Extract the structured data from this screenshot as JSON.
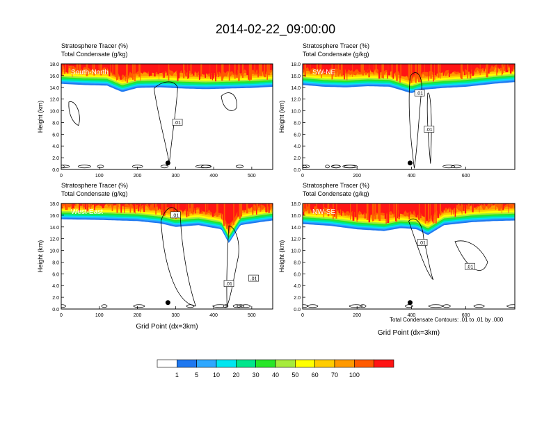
{
  "title": "2014-02-22_09:00:00",
  "contour_note": "Total Condensate Contours: .01 to .01 by .000",
  "colorbar": {
    "colors": [
      "#ffffff",
      "#1e78f0",
      "#2ea8ff",
      "#00e6f0",
      "#00e68c",
      "#28e628",
      "#a6eb3c",
      "#ffff00",
      "#ffcc00",
      "#ff9900",
      "#ff5a00",
      "#ff1414"
    ],
    "labels": [
      "1",
      "5",
      "10",
      "20",
      "30",
      "40",
      "50",
      "60",
      "70",
      "100"
    ]
  },
  "chart_data": [
    {
      "type": "contour",
      "panel": "South-North",
      "header_line1": "Stratosphere Tracer   (%)",
      "header_line2": "Total Condensate   (g/kg)",
      "ylabel": "Height (km)",
      "xlabel": "",
      "xlim": [
        0,
        555
      ],
      "ylim": [
        0,
        18
      ],
      "xticks": [
        "0",
        "100",
        "200",
        "300",
        "400",
        "500"
      ],
      "yticks": [
        "0.0",
        "2.0",
        "4.0",
        "6.0",
        "8.0",
        "10.0",
        "12.0",
        "14.0",
        "16.0",
        "18.0"
      ],
      "marker_x": 280,
      "contour_labels": [
        {
          "text": ".01",
          "x": 305,
          "y": 8.0
        }
      ],
      "tracer_base": [
        [
          0,
          14.6
        ],
        [
          60,
          14.4
        ],
        [
          120,
          14.3
        ],
        [
          160,
          13.2
        ],
        [
          200,
          13.9
        ],
        [
          260,
          14.0
        ],
        [
          320,
          13.8
        ],
        [
          380,
          13.7
        ],
        [
          440,
          13.8
        ],
        [
          500,
          13.9
        ],
        [
          555,
          14.1
        ]
      ],
      "towers": []
    },
    {
      "type": "contour",
      "panel": "SW-NE",
      "header_line1": "Stratosphere Tracer   (%)",
      "header_line2": "Total Condensate   (g/kg)",
      "ylabel": "Height (km)",
      "xlabel": "",
      "xlim": [
        0,
        780
      ],
      "ylim": [
        0,
        18
      ],
      "xticks": [
        "0",
        "200",
        "400",
        "600"
      ],
      "yticks": [
        "0.0",
        "2.0",
        "4.0",
        "6.0",
        "8.0",
        "10.0",
        "12.0",
        "14.0",
        "16.0",
        "18.0"
      ],
      "marker_x": 395,
      "contour_labels": [
        {
          "text": ".01",
          "x": 430,
          "y": 13.0
        },
        {
          "text": ".01",
          "x": 465,
          "y": 6.8
        }
      ],
      "tracer_base": [
        [
          0,
          14.4
        ],
        [
          80,
          14.1
        ],
        [
          160,
          14.0
        ],
        [
          240,
          14.2
        ],
        [
          320,
          14.1
        ],
        [
          400,
          13.0
        ],
        [
          440,
          13.6
        ],
        [
          520,
          13.9
        ],
        [
          600,
          14.1
        ],
        [
          700,
          14.6
        ],
        [
          780,
          14.9
        ]
      ],
      "towers": []
    },
    {
      "type": "contour",
      "panel": "West-East",
      "header_line1": "Stratosphere Tracer   (%)",
      "header_line2": "Total Condensate   (g/kg)",
      "ylabel": "Height (km)",
      "xlabel": "Grid Point (dx=3km)",
      "xlim": [
        0,
        555
      ],
      "ylim": [
        0,
        18
      ],
      "xticks": [
        "0",
        "100",
        "200",
        "300",
        "400",
        "500"
      ],
      "yticks": [
        "0.0",
        "2.0",
        "4.0",
        "6.0",
        "8.0",
        "10.0",
        "12.0",
        "14.0",
        "16.0",
        "18.0"
      ],
      "marker_x": 280,
      "contour_labels": [
        {
          "text": ".01",
          "x": 300,
          "y": 16.0
        },
        {
          "text": ".01",
          "x": 440,
          "y": 4.3
        },
        {
          "text": ".01",
          "x": 505,
          "y": 5.2
        }
      ],
      "tracer_base": [
        [
          0,
          15.3
        ],
        [
          100,
          15.2
        ],
        [
          200,
          15.0
        ],
        [
          260,
          14.6
        ],
        [
          300,
          14.0
        ],
        [
          360,
          14.3
        ],
        [
          420,
          13.6
        ],
        [
          440,
          11.2
        ],
        [
          470,
          14.3
        ],
        [
          520,
          14.8
        ],
        [
          555,
          15.1
        ]
      ],
      "towers": []
    },
    {
      "type": "contour",
      "panel": "NW-SE",
      "header_line1": "Stratosphere Tracer   (%)",
      "header_line2": "Total Condensate   (g/kg)",
      "ylabel": "Height (km)",
      "xlabel": "Grid Point (dx=3km)",
      "xlim": [
        0,
        780
      ],
      "ylim": [
        0,
        18
      ],
      "xticks": [
        "0",
        "200",
        "400",
        "600"
      ],
      "yticks": [
        "0.0",
        "2.0",
        "4.0",
        "6.0",
        "8.0",
        "10.0",
        "12.0",
        "14.0",
        "16.0",
        "18.0"
      ],
      "marker_x": 395,
      "contour_labels": [
        {
          "text": ".01",
          "x": 440,
          "y": 11.3
        },
        {
          "text": ".01",
          "x": 615,
          "y": 7.2
        }
      ],
      "tracer_base": [
        [
          0,
          14.5
        ],
        [
          100,
          14.2
        ],
        [
          200,
          13.6
        ],
        [
          300,
          13.3
        ],
        [
          360,
          13.8
        ],
        [
          420,
          13.6
        ],
        [
          460,
          12.6
        ],
        [
          520,
          14.3
        ],
        [
          620,
          14.8
        ],
        [
          700,
          15.0
        ],
        [
          780,
          15.1
        ]
      ],
      "towers": []
    }
  ]
}
